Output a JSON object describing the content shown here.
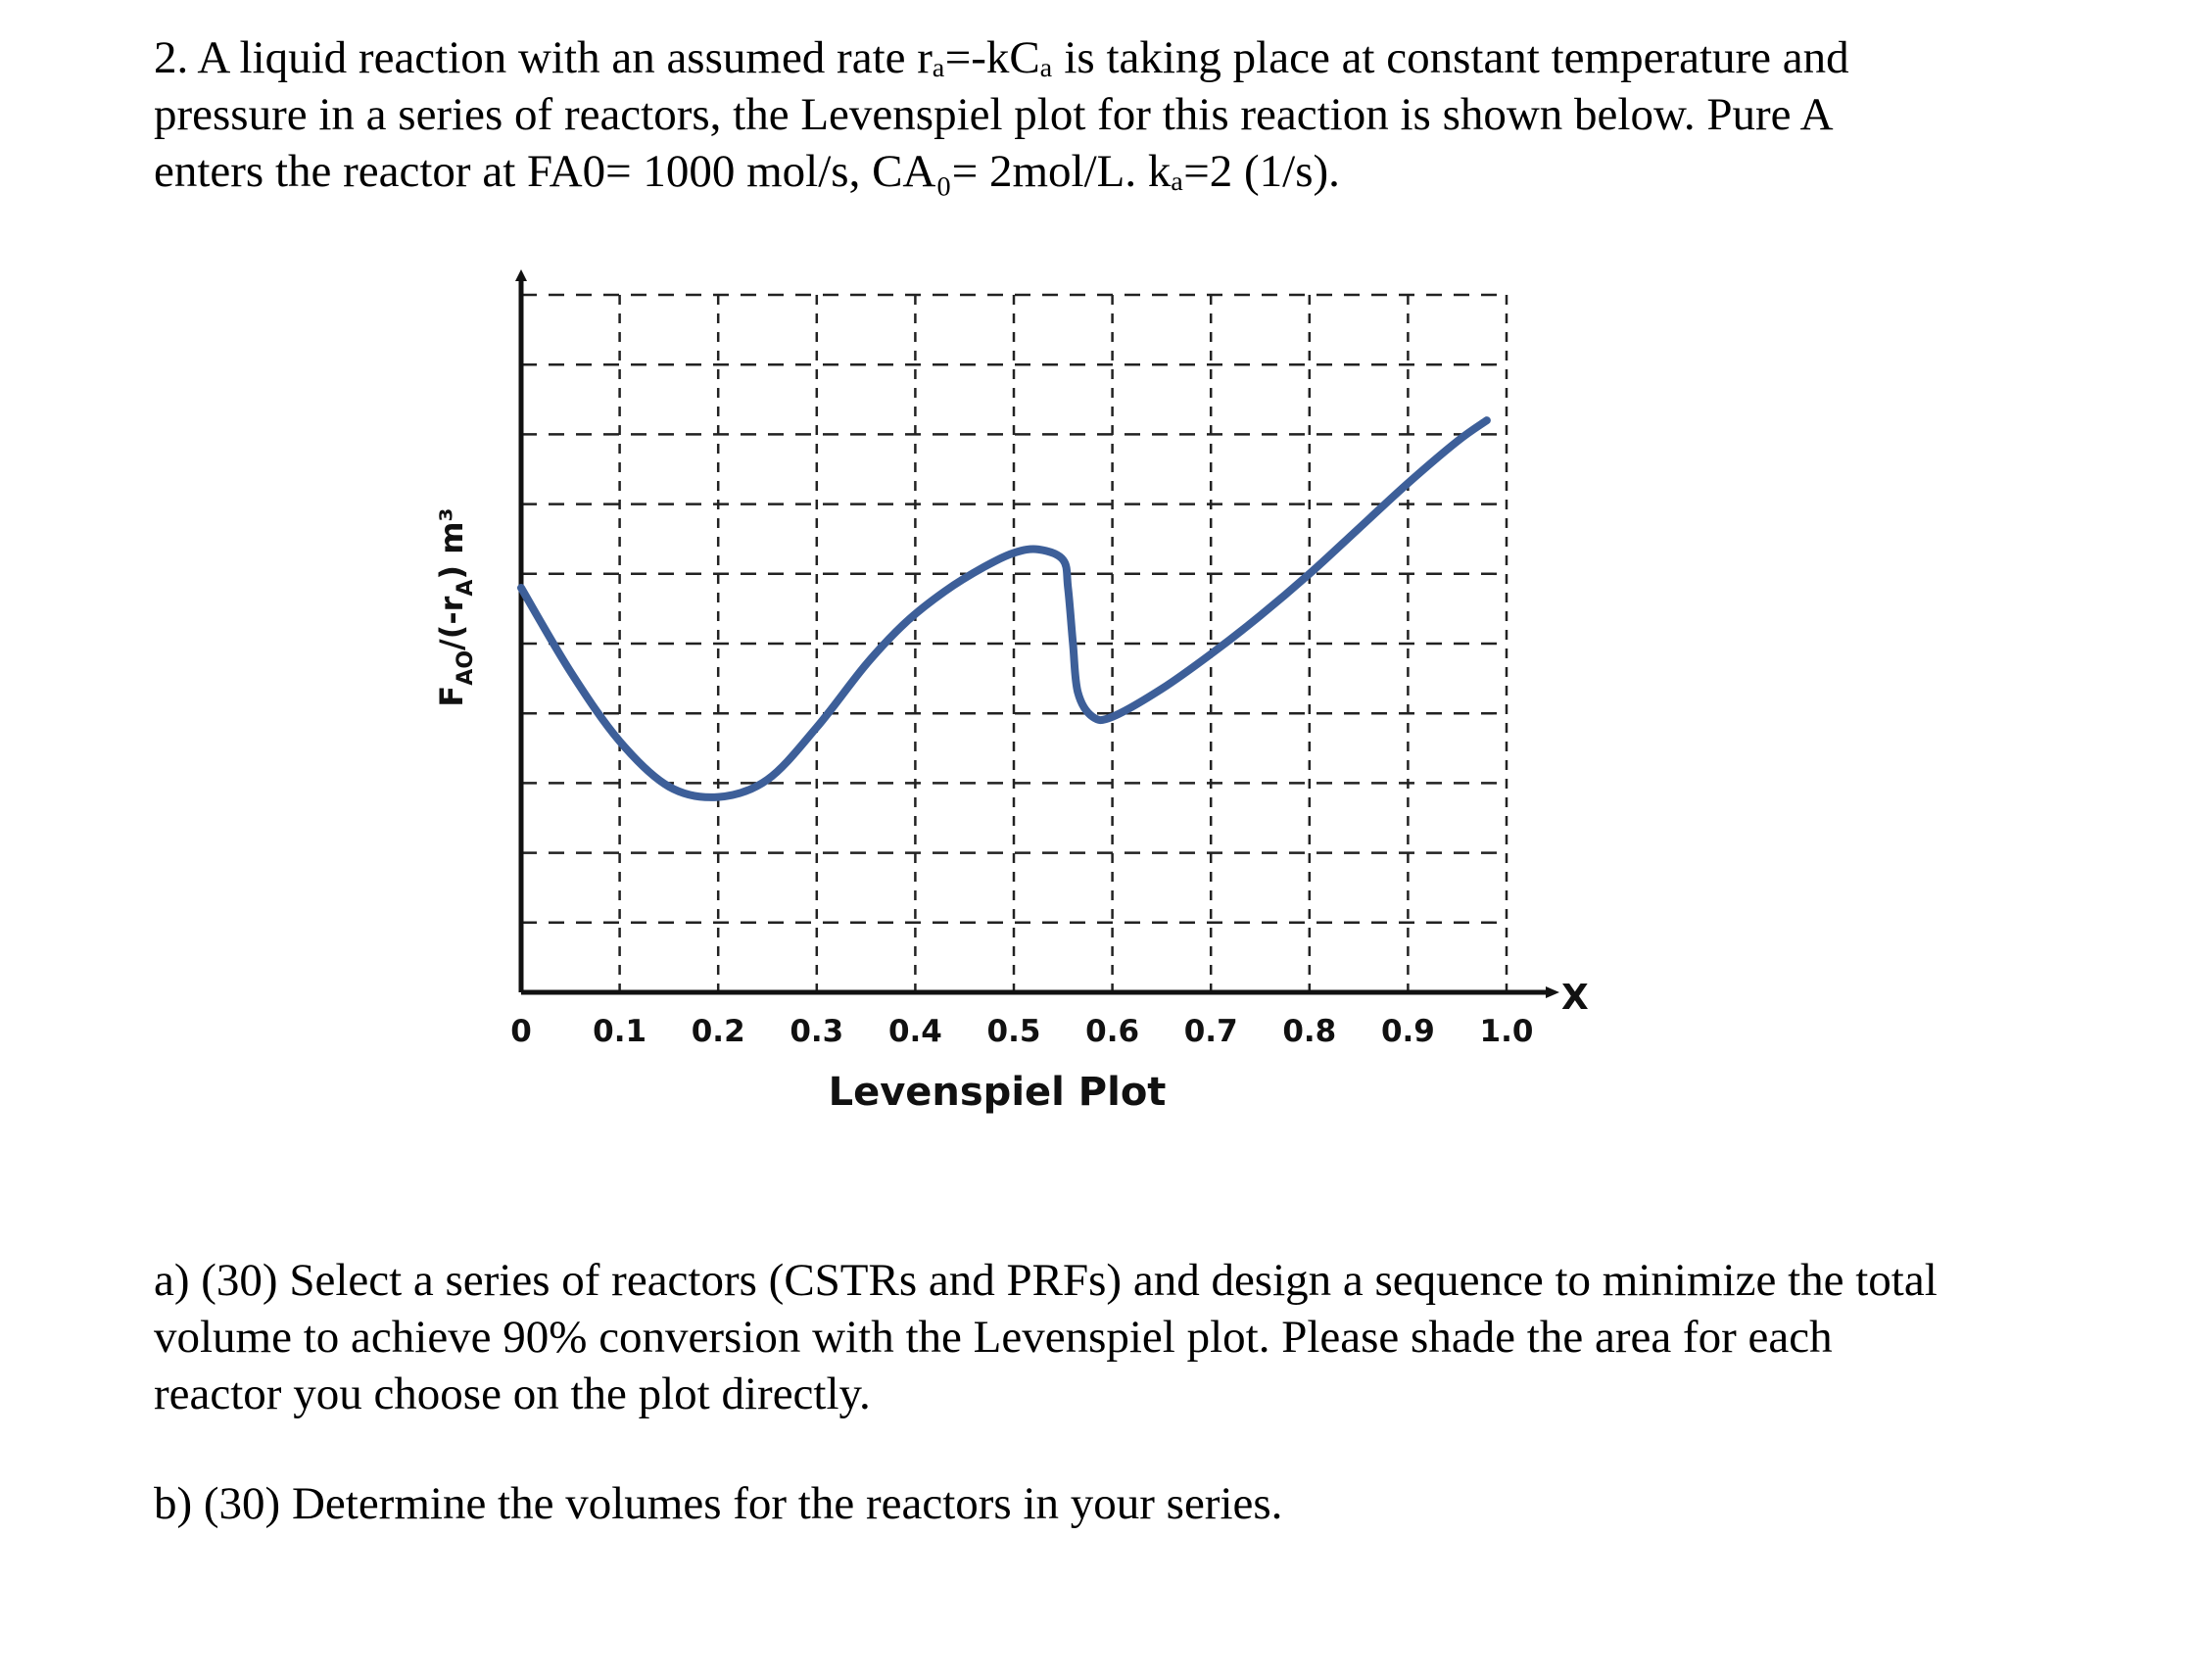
{
  "problem": {
    "intro_lines": [
      "2.   A liquid reaction with an assumed rate rₐ=-kCₐ is taking place at constant temperature and",
      "pressure in a series of reactors, the Levenspiel plot for this reaction is shown below. Pure A",
      "enters the reactor at FA0= 1000 mol/s, CA₀= 2mol/L.  kₐ=2 (1/s)."
    ],
    "part_a_lines": [
      "a) (30) Select a series of reactors (CSTRs and PRFs) and design a sequence to minimize the total",
      "volume to achieve 90% conversion with the Levenspiel plot. Please shade the area for each",
      "reactor you choose on the plot directly."
    ],
    "part_b_lines": [
      "b) (30) Determine the volumes for the reactors in your series."
    ]
  },
  "chart_data": {
    "type": "line",
    "title": "Levenspiel Plot",
    "xlabel": "X",
    "ylabel": "F_AO/(-r_A) m³",
    "ylabel_parts": {
      "F": "F",
      "sub1": "AO",
      "mid": "/(-r",
      "sub2": "A",
      "close": ")",
      "unit": " m³"
    },
    "x_tick_labels": [
      "0",
      "0.1",
      "0.2",
      "0.3",
      "0.4",
      "0.5",
      "0.6",
      "0.7",
      "0.8",
      "0.9",
      "1.0"
    ],
    "xlim": [
      0,
      1.0
    ],
    "ylim": [
      0,
      10
    ],
    "y_ticks_labeled": false,
    "grid": true,
    "grid_style": "dashed",
    "series": [
      {
        "color": "#3d5f99",
        "points": [
          [
            0.0,
            5.8
          ],
          [
            0.05,
            4.6
          ],
          [
            0.1,
            3.6
          ],
          [
            0.15,
            2.95
          ],
          [
            0.2,
            2.8
          ],
          [
            0.25,
            3.05
          ],
          [
            0.3,
            3.8
          ],
          [
            0.35,
            4.7
          ],
          [
            0.39,
            5.3
          ],
          [
            0.43,
            5.75
          ],
          [
            0.47,
            6.1
          ],
          [
            0.5,
            6.3
          ],
          [
            0.525,
            6.35
          ],
          [
            0.55,
            6.2
          ],
          [
            0.555,
            5.8
          ],
          [
            0.56,
            5.0
          ],
          [
            0.565,
            4.3
          ],
          [
            0.58,
            3.95
          ],
          [
            0.6,
            3.95
          ],
          [
            0.65,
            4.35
          ],
          [
            0.7,
            4.85
          ],
          [
            0.75,
            5.4
          ],
          [
            0.8,
            6.0
          ],
          [
            0.85,
            6.65
          ],
          [
            0.9,
            7.3
          ],
          [
            0.95,
            7.9
          ],
          [
            0.98,
            8.2
          ]
        ]
      }
    ]
  }
}
